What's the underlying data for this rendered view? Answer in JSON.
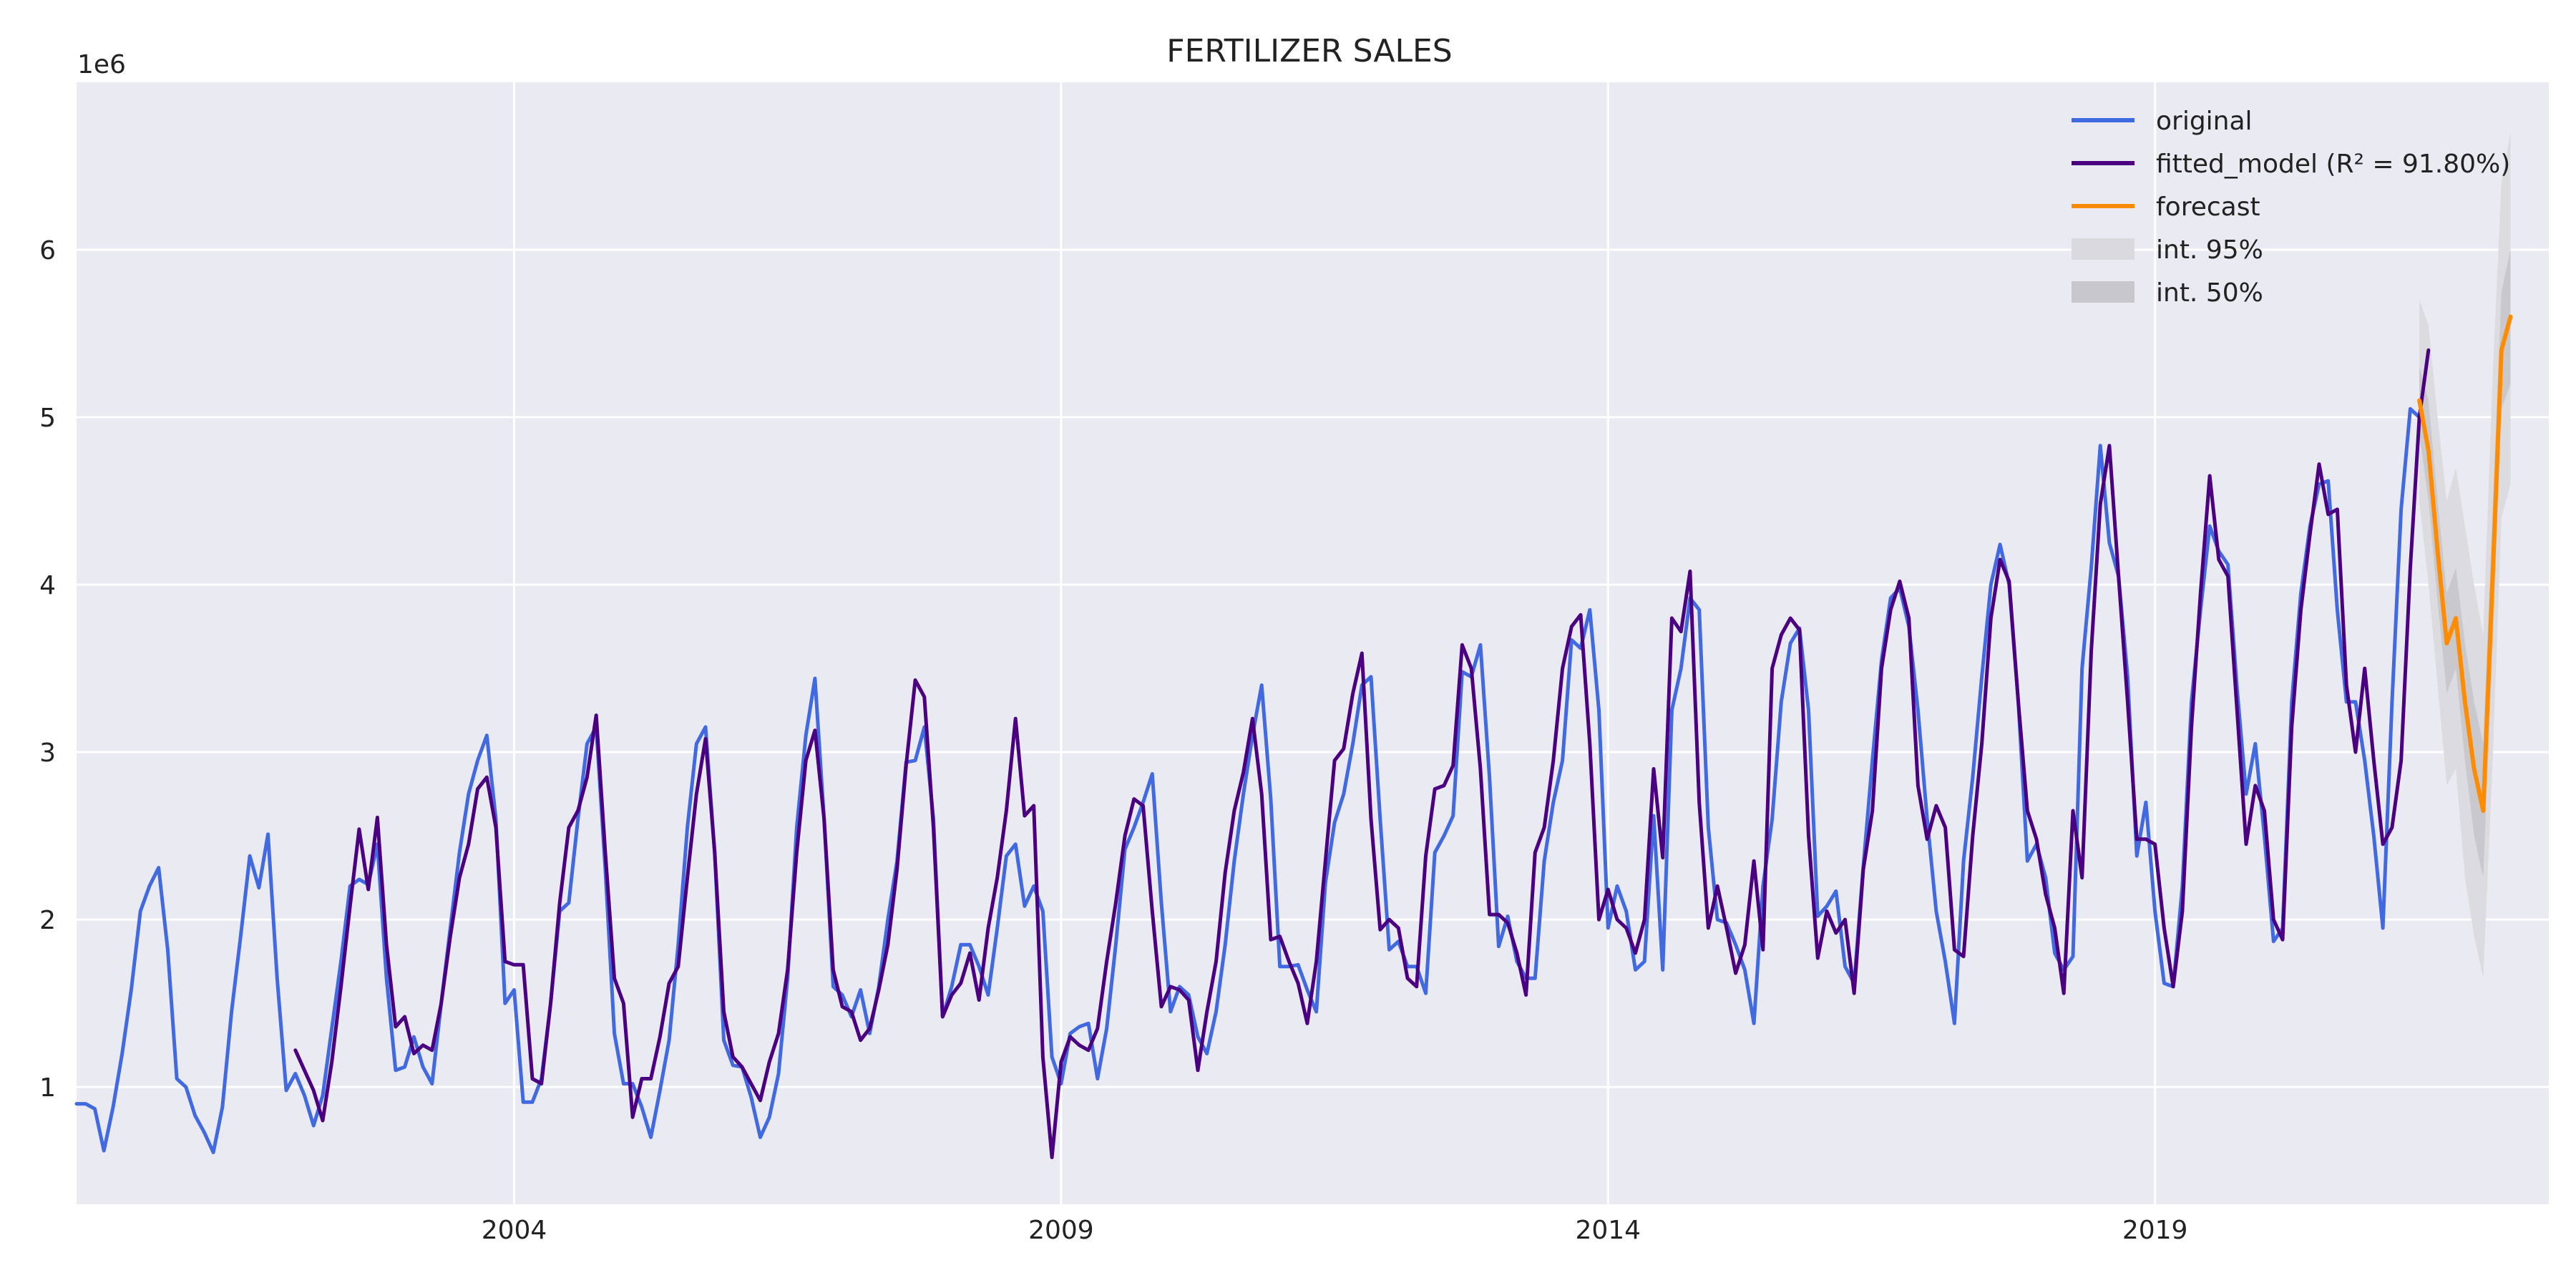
{
  "chart_data": {
    "type": "line",
    "title": "FERTILIZER SALES",
    "y_scale_label": "1e6",
    "xlim": [
      2000,
      2022.6
    ],
    "ylim": [
      0.3,
      7.0
    ],
    "x_ticks": [
      2004,
      2009,
      2014,
      2019
    ],
    "x_tick_labels": [
      "2004",
      "2009",
      "2014",
      "2019"
    ],
    "y_ticks": [
      1,
      2,
      3,
      4,
      5,
      6
    ],
    "y_tick_labels": [
      "1",
      "2",
      "3",
      "4",
      "5",
      "6"
    ],
    "grid": true,
    "legend_position": "top-right",
    "legend": [
      {
        "label": "original",
        "kind": "line",
        "color": "#4169e1"
      },
      {
        "label": "fitted_model (R² = 91.80%)",
        "kind": "line",
        "color": "#4b0082"
      },
      {
        "label": "forecast",
        "kind": "line",
        "color": "#ff8c00"
      },
      {
        "label": "int. 95%",
        "kind": "band",
        "color": "#d9d9de"
      },
      {
        "label": "int. 50%",
        "kind": "band",
        "color": "#c7c7cc"
      }
    ],
    "colors": {
      "original": "#4169e1",
      "fitted": "#4b0082",
      "forecast": "#ff8c00",
      "band95": "#d9d9de",
      "band50": "#c6c6cb",
      "plot_bg": "#eaeaf2",
      "grid": "#ffffff"
    },
    "series": [
      {
        "name": "original",
        "start_year": 2000,
        "step_months": 1,
        "values": [
          0.9,
          0.9,
          0.87,
          0.62,
          0.88,
          1.2,
          1.58,
          2.05,
          2.2,
          2.31,
          1.82,
          1.05,
          1.0,
          0.83,
          0.73,
          0.61,
          0.88,
          1.45,
          1.9,
          2.38,
          2.19,
          2.51,
          1.65,
          0.98,
          1.08,
          0.95,
          0.77,
          0.95,
          1.35,
          1.75,
          2.2,
          2.24,
          2.21,
          2.45,
          1.65,
          1.1,
          1.12,
          1.3,
          1.12,
          1.02,
          1.5,
          1.95,
          2.4,
          2.75,
          2.95,
          3.1,
          2.6,
          1.5,
          1.58,
          0.91,
          0.91,
          1.05,
          1.5,
          2.05,
          2.1,
          2.6,
          3.05,
          3.15,
          2.3,
          1.32,
          1.02,
          1.02,
          0.88,
          0.7,
          0.98,
          1.28,
          1.85,
          2.55,
          3.05,
          3.15,
          2.4,
          1.28,
          1.13,
          1.12,
          0.94,
          0.7,
          0.82,
          1.08,
          1.65,
          2.55,
          3.1,
          3.44,
          2.6,
          1.6,
          1.55,
          1.42,
          1.58,
          1.32,
          1.6,
          2.0,
          2.35,
          2.94,
          2.95,
          3.15,
          2.6,
          1.42,
          1.6,
          1.85,
          1.85,
          1.72,
          1.55,
          1.95,
          2.38,
          2.45,
          2.08,
          2.2,
          2.05,
          1.18,
          1.02,
          1.32,
          1.36,
          1.38,
          1.05,
          1.35,
          1.85,
          2.42,
          2.55,
          2.7,
          2.87,
          2.1,
          1.45,
          1.6,
          1.55,
          1.3,
          1.2,
          1.45,
          1.85,
          2.35,
          2.75,
          3.1,
          3.4,
          2.72,
          1.72,
          1.72,
          1.73,
          1.58,
          1.45,
          2.22,
          2.58,
          2.75,
          3.05,
          3.4,
          3.45,
          2.6,
          1.82,
          1.87,
          1.72,
          1.72,
          1.56,
          2.4,
          2.5,
          2.62,
          3.48,
          3.45,
          3.64,
          2.85,
          1.84,
          2.02,
          1.75,
          1.65,
          1.65,
          2.35,
          2.7,
          2.95,
          3.67,
          3.62,
          3.85,
          3.25,
          1.95,
          2.2,
          2.05,
          1.7,
          1.75,
          2.62,
          1.7,
          3.25,
          3.5,
          3.92,
          3.85,
          2.55,
          2.0,
          1.98,
          1.85,
          1.7,
          1.38,
          2.2,
          2.6,
          3.3,
          3.65,
          3.74,
          3.25,
          2.02,
          2.08,
          2.17,
          1.72,
          1.62,
          2.32,
          2.95,
          3.55,
          3.92,
          3.98,
          3.75,
          3.25,
          2.6,
          2.05,
          1.75,
          1.38,
          2.35,
          2.85,
          3.45,
          4.0,
          4.24,
          4.0,
          3.3,
          2.35,
          2.45,
          2.25,
          1.8,
          1.7,
          1.78,
          3.5,
          4.1,
          4.83,
          4.25,
          4.05,
          3.45,
          2.38,
          2.7,
          2.05,
          1.62,
          1.6,
          2.2,
          3.3,
          3.85,
          4.35,
          4.2,
          4.12,
          3.38,
          2.75,
          3.05,
          2.5,
          1.87,
          1.95,
          3.3,
          3.95,
          4.35,
          4.6,
          4.62,
          3.85,
          3.3,
          3.3,
          2.95,
          2.5,
          1.95,
          3.3,
          4.45,
          5.05,
          5.0
        ]
      },
      {
        "name": "fitted_model (R² = 91.80%)",
        "start_year": 2002,
        "step_months": 1,
        "values": [
          1.22,
          1.1,
          0.98,
          0.8,
          1.15,
          1.6,
          2.08,
          2.54,
          2.18,
          2.61,
          1.85,
          1.36,
          1.42,
          1.2,
          1.25,
          1.22,
          1.5,
          1.9,
          2.25,
          2.45,
          2.78,
          2.85,
          2.55,
          1.75,
          1.73,
          1.73,
          1.05,
          1.02,
          1.5,
          2.1,
          2.55,
          2.65,
          2.85,
          3.22,
          2.4,
          1.65,
          1.5,
          0.82,
          1.05,
          1.05,
          1.3,
          1.62,
          1.72,
          2.25,
          2.75,
          3.08,
          2.4,
          1.45,
          1.18,
          1.12,
          1.02,
          0.92,
          1.15,
          1.32,
          1.7,
          2.4,
          2.95,
          3.13,
          2.6,
          1.7,
          1.48,
          1.45,
          1.28,
          1.35,
          1.58,
          1.85,
          2.3,
          2.92,
          3.43,
          3.33,
          2.55,
          1.42,
          1.55,
          1.62,
          1.8,
          1.52,
          1.95,
          2.25,
          2.65,
          3.2,
          2.62,
          2.68,
          1.18,
          0.58,
          1.15,
          1.3,
          1.25,
          1.22,
          1.35,
          1.75,
          2.1,
          2.5,
          2.72,
          2.68,
          2.05,
          1.48,
          1.6,
          1.58,
          1.52,
          1.1,
          1.45,
          1.75,
          2.28,
          2.65,
          2.88,
          3.2,
          2.75,
          1.88,
          1.9,
          1.75,
          1.62,
          1.38,
          1.75,
          2.35,
          2.95,
          3.02,
          3.35,
          3.59,
          2.6,
          1.94,
          2.0,
          1.95,
          1.65,
          1.6,
          2.38,
          2.78,
          2.8,
          2.92,
          3.64,
          3.5,
          2.9,
          2.03,
          2.03,
          1.98,
          1.8,
          1.55,
          2.4,
          2.55,
          2.95,
          3.5,
          3.75,
          3.82,
          3.05,
          2.0,
          2.18,
          2.0,
          1.95,
          1.8,
          2.0,
          2.9,
          2.37,
          3.8,
          3.72,
          4.08,
          2.7,
          1.95,
          2.2,
          1.95,
          1.68,
          1.85,
          2.35,
          1.82,
          3.5,
          3.7,
          3.8,
          3.73,
          2.5,
          1.77,
          2.05,
          1.92,
          2.0,
          1.56,
          2.3,
          2.65,
          3.5,
          3.85,
          4.02,
          3.8,
          2.8,
          2.48,
          2.68,
          2.55,
          1.82,
          1.78,
          2.5,
          3.05,
          3.8,
          4.15,
          4.02,
          3.3,
          2.65,
          2.48,
          2.15,
          1.95,
          1.56,
          2.65,
          2.25,
          3.6,
          4.48,
          4.83,
          4.05,
          3.3,
          2.48,
          2.48,
          2.45,
          1.95,
          1.6,
          2.05,
          3.15,
          3.95,
          4.65,
          4.15,
          4.05,
          3.25,
          2.45,
          2.8,
          2.65,
          2.0,
          1.88,
          3.15,
          3.85,
          4.3,
          4.72,
          4.42,
          4.45,
          3.4,
          3.0,
          3.5,
          2.95,
          2.45,
          2.55,
          2.95,
          4.1,
          5.0,
          5.4
        ]
      },
      {
        "name": "forecast",
        "start_year": 2021.417,
        "step_months": 1,
        "values": [
          5.1,
          4.8,
          4.2,
          3.65,
          3.8,
          3.3,
          2.9,
          2.65,
          4.0,
          5.4,
          5.6
        ]
      }
    ],
    "band95": {
      "start_year": 2021.417,
      "step_months": 1,
      "upper": [
        5.7,
        5.55,
        5.0,
        4.5,
        4.7,
        4.35,
        4.0,
        3.7,
        5.2,
        6.4,
        6.7
      ],
      "lower": [
        4.5,
        4.0,
        3.4,
        2.8,
        2.9,
        2.25,
        1.9,
        1.65,
        2.9,
        4.4,
        4.6
      ]
    },
    "band50": {
      "start_year": 2021.417,
      "step_months": 1,
      "upper": [
        5.3,
        5.1,
        4.5,
        3.95,
        4.1,
        3.65,
        3.3,
        3.05,
        4.4,
        5.75,
        6.0
      ],
      "lower": [
        4.9,
        4.5,
        3.9,
        3.35,
        3.5,
        2.95,
        2.5,
        2.25,
        3.6,
        5.05,
        5.2
      ]
    }
  }
}
